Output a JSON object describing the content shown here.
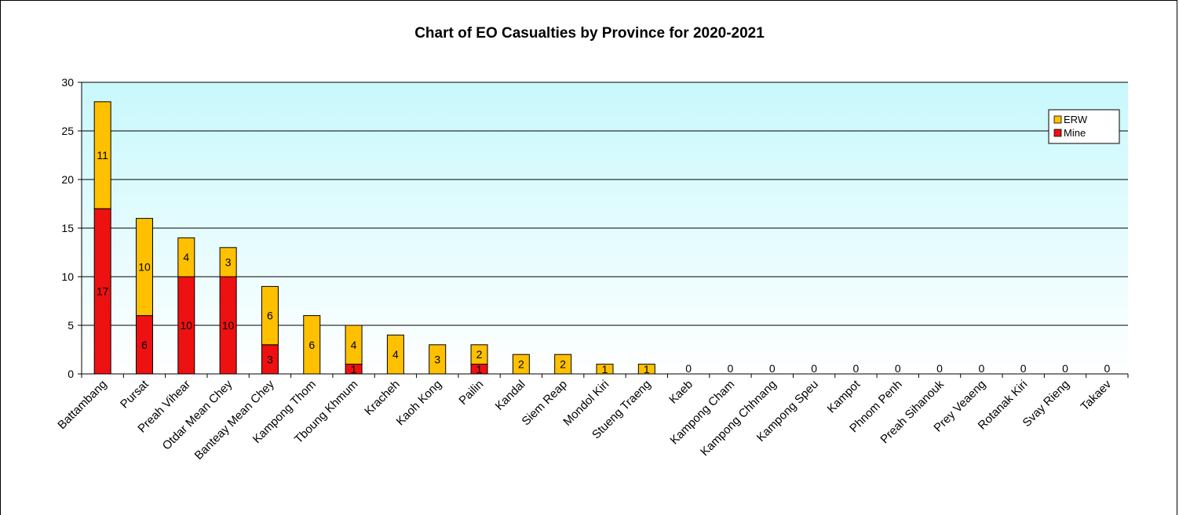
{
  "chart_data": {
    "type": "bar",
    "stacked": true,
    "title": "Chart of EO Casualties by Province for 2020-2021",
    "xlabel": "",
    "ylabel": "",
    "ylim": [
      0,
      30
    ],
    "yticks": [
      "0",
      "5",
      "10",
      "15",
      "20",
      "25",
      "30"
    ],
    "grid": true,
    "legend_position": "top-right",
    "categories": [
      "Battambang",
      "Pursat",
      "Preah Vihear",
      "Otdar Mean Chey",
      "Banteay Mean Chey",
      "Kampong Thom",
      "Tboung Khmum",
      "Kracheh",
      "Kaoh Kong",
      "Pailin",
      "Kandal",
      "Siem Reap",
      "Mondol Kiri",
      "Stueng Traeng",
      "Kaeb",
      "Kampong Cham",
      "Kampong Chhnang",
      "Kampong Speu",
      "Kampot",
      "Phnom Penh",
      "Preah Sihanouk",
      "Prey Veaeng",
      "Rotanak Kiri",
      "Svay Rieng",
      "Takaev"
    ],
    "series": [
      {
        "name": "Mine",
        "color": "#ee1111",
        "values": [
          17,
          6,
          10,
          10,
          3,
          0,
          1,
          0,
          0,
          1,
          0,
          0,
          0,
          0,
          0,
          0,
          0,
          0,
          0,
          0,
          0,
          0,
          0,
          0,
          0
        ]
      },
      {
        "name": "ERW",
        "color": "#ffc000",
        "values": [
          11,
          10,
          4,
          3,
          6,
          6,
          4,
          4,
          3,
          2,
          2,
          2,
          1,
          1,
          0,
          0,
          0,
          0,
          0,
          0,
          0,
          0,
          0,
          0,
          0
        ]
      }
    ],
    "legend_order": [
      "ERW",
      "Mine"
    ],
    "plot_background": [
      "#c8f8fc",
      "#ffffff"
    ]
  }
}
